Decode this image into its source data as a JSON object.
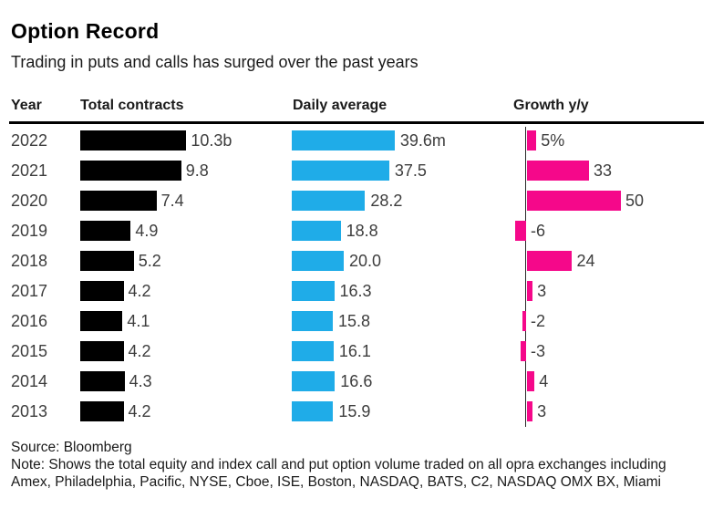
{
  "header": {
    "title": "Option Record",
    "subtitle": "Trading in puts and calls has surged over the past years"
  },
  "columns": [
    {
      "label": "Year"
    },
    {
      "label": "Total contracts"
    },
    {
      "label": "Daily average"
    },
    {
      "label": "Growth y/y"
    }
  ],
  "colors": {
    "total_contracts_bar": "#000000",
    "daily_average_bar": "#1face8",
    "growth_bar": "#f5088a",
    "text_gray": "#3d3d3d"
  },
  "chart_data": {
    "type": "bar",
    "orientation": "horizontal",
    "title": "Option Record",
    "subtitle": "Trading in puts and calls has surged over the past years",
    "categories": [
      "2022",
      "2021",
      "2020",
      "2019",
      "2018",
      "2017",
      "2016",
      "2015",
      "2014",
      "2013"
    ],
    "series": [
      {
        "name": "Total contracts",
        "unit": "b",
        "color": "#000000",
        "xlim": [
          0,
          10.3
        ],
        "values": [
          10.3,
          9.8,
          7.4,
          4.9,
          5.2,
          4.2,
          4.1,
          4.2,
          4.3,
          4.2
        ],
        "labels": [
          "10.3b",
          "9.8",
          "7.4",
          "4.9",
          "5.2",
          "4.2",
          "4.1",
          "4.2",
          "4.3",
          "4.2"
        ]
      },
      {
        "name": "Daily average",
        "unit": "m",
        "color": "#1face8",
        "xlim": [
          0,
          39.6
        ],
        "values": [
          39.6,
          37.5,
          28.2,
          18.8,
          20.0,
          16.3,
          15.8,
          16.1,
          16.6,
          15.9
        ],
        "labels": [
          "39.6m",
          "37.5",
          "28.2",
          "18.8",
          "20.0",
          "16.3",
          "15.8",
          "16.1",
          "16.6",
          "15.9"
        ]
      },
      {
        "name": "Growth y/y",
        "unit": "%",
        "color": "#f5088a",
        "xlim": [
          -6,
          50
        ],
        "values": [
          5,
          33,
          50,
          -6,
          24,
          3,
          -2,
          -3,
          4,
          3
        ],
        "labels": [
          "5%",
          "33",
          "50",
          "-6",
          "24",
          "3",
          "-2",
          "-3",
          "4",
          "3"
        ]
      }
    ],
    "legend": "none",
    "grid": "off"
  },
  "footer": {
    "source": "Source: Bloomberg",
    "note": "Note: Shows the total equity and index call and put option volume traded on all opra exchanges including Amex, Philadelphia, Pacific, NYSE, Cboe, ISE, Boston, NASDAQ, BATS, C2, NASDAQ OMX BX, Miami"
  }
}
